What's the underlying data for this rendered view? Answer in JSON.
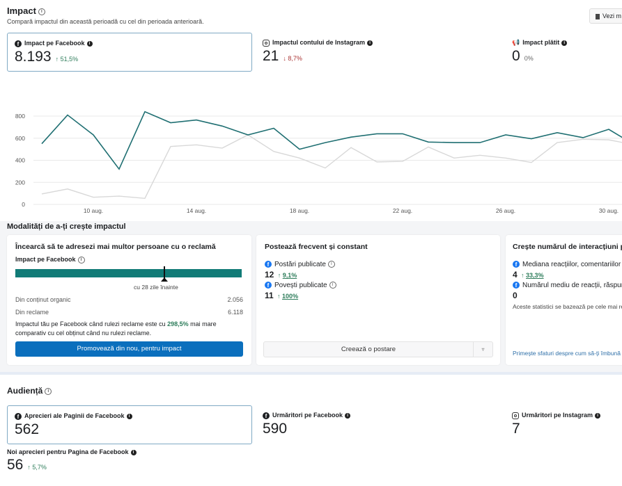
{
  "impact": {
    "title": "Impact",
    "subtitle": "Compară impactul din această perioadă cu cel din perioada anterioară.",
    "more_button": "Vezi m",
    "metrics": [
      {
        "label": "Impact pe Facebook",
        "value": "8.193",
        "delta": "51,5%",
        "direction": "up",
        "icon": "facebook-icon"
      },
      {
        "label": "Impactul contului de Instagram",
        "value": "21",
        "delta": "8,7%",
        "direction": "down",
        "icon": "instagram-icon"
      },
      {
        "label": "Impact plătit",
        "value": "0",
        "delta": "0%",
        "direction": "none",
        "icon": "megaphone-icon"
      }
    ]
  },
  "chart_data": {
    "type": "line",
    "x": [
      "8 aug.",
      "9 aug.",
      "10 aug.",
      "11 aug.",
      "12 aug.",
      "13 aug.",
      "14 aug.",
      "15 aug.",
      "16 aug.",
      "17 aug.",
      "18 aug.",
      "19 aug.",
      "20 aug.",
      "21 aug.",
      "22 aug.",
      "23 aug.",
      "24 aug.",
      "25 aug.",
      "26 aug.",
      "27 aug.",
      "28 aug.",
      "29 aug.",
      "30 aug.",
      "31 aug."
    ],
    "x_ticks": [
      "10 aug.",
      "14 aug.",
      "18 aug.",
      "22 aug.",
      "26 aug.",
      "30 aug."
    ],
    "y_ticks": [
      "0",
      "200",
      "400",
      "600",
      "800"
    ],
    "ylim": [
      0,
      800
    ],
    "grid": true,
    "series": [
      {
        "color": "#1f6f72",
        "values": [
          550,
          810,
          630,
          320,
          840,
          740,
          765,
          710,
          630,
          690,
          500,
          560,
          610,
          640,
          640,
          565,
          560,
          560,
          630,
          595,
          650,
          605,
          680,
          540
        ]
      },
      {
        "color": "#d8d8d8",
        "values": [
          95,
          140,
          65,
          75,
          55,
          525,
          540,
          510,
          630,
          480,
          420,
          330,
          515,
          385,
          390,
          520,
          420,
          445,
          420,
          380,
          560,
          590,
          585,
          540
        ]
      }
    ]
  },
  "ways": {
    "title": "Modalități de a-ți crește impactul",
    "ads": {
      "title": "Încearcă să te adresezi mai multor persoane cu o reclamă",
      "label": "Impact pe Facebook",
      "marker_label": "cu 28 zile înainte",
      "organic_label": "Din conținut organic",
      "organic_value": "2.056",
      "ads_label": "Din reclame",
      "ads_value": "6.118",
      "text_a": "Impactul tău pe Facebook când rulezi reclame este cu ",
      "highlight": "298,5%",
      "text_b": " mai mare comparativ cu cel obținut când nu rulezi reclame.",
      "button": "Promovează din nou, pentru impact"
    },
    "post": {
      "title": "Postează frecvent și constant",
      "posts_label": "Postări publicate",
      "posts_value": "12",
      "posts_delta": "9,1%",
      "stories_label": "Povești publicate",
      "stories_value": "11",
      "stories_delta": "100%",
      "button": "Creează o postare"
    },
    "engage": {
      "title": "Crește numărul de interacțiuni pe",
      "median_label": "Mediana reacțiilor, comentariilor ș",
      "median_value": "4",
      "median_delta": "33,3%",
      "avg_label": "Numărul mediu de reacții, răspun",
      "avg_value": "0",
      "note": "Aceste statistici se bazează pe cele mai re",
      "link": "Primește sfaturi despre cum să-ți îmbună"
    }
  },
  "audience": {
    "title": "Audiență",
    "metrics": [
      {
        "label": "Aprecieri ale Paginii de Facebook",
        "value": "562",
        "icon": "facebook-icon"
      },
      {
        "label": "Urmăritori pe Facebook",
        "value": "590",
        "icon": "facebook-icon"
      },
      {
        "label": "Urmăritori pe Instagram",
        "value": "7",
        "icon": "instagram-icon"
      }
    ],
    "new_likes": {
      "label": "Noi aprecieri pentru Pagina de Facebook",
      "value": "56",
      "delta": "5,7%"
    }
  }
}
